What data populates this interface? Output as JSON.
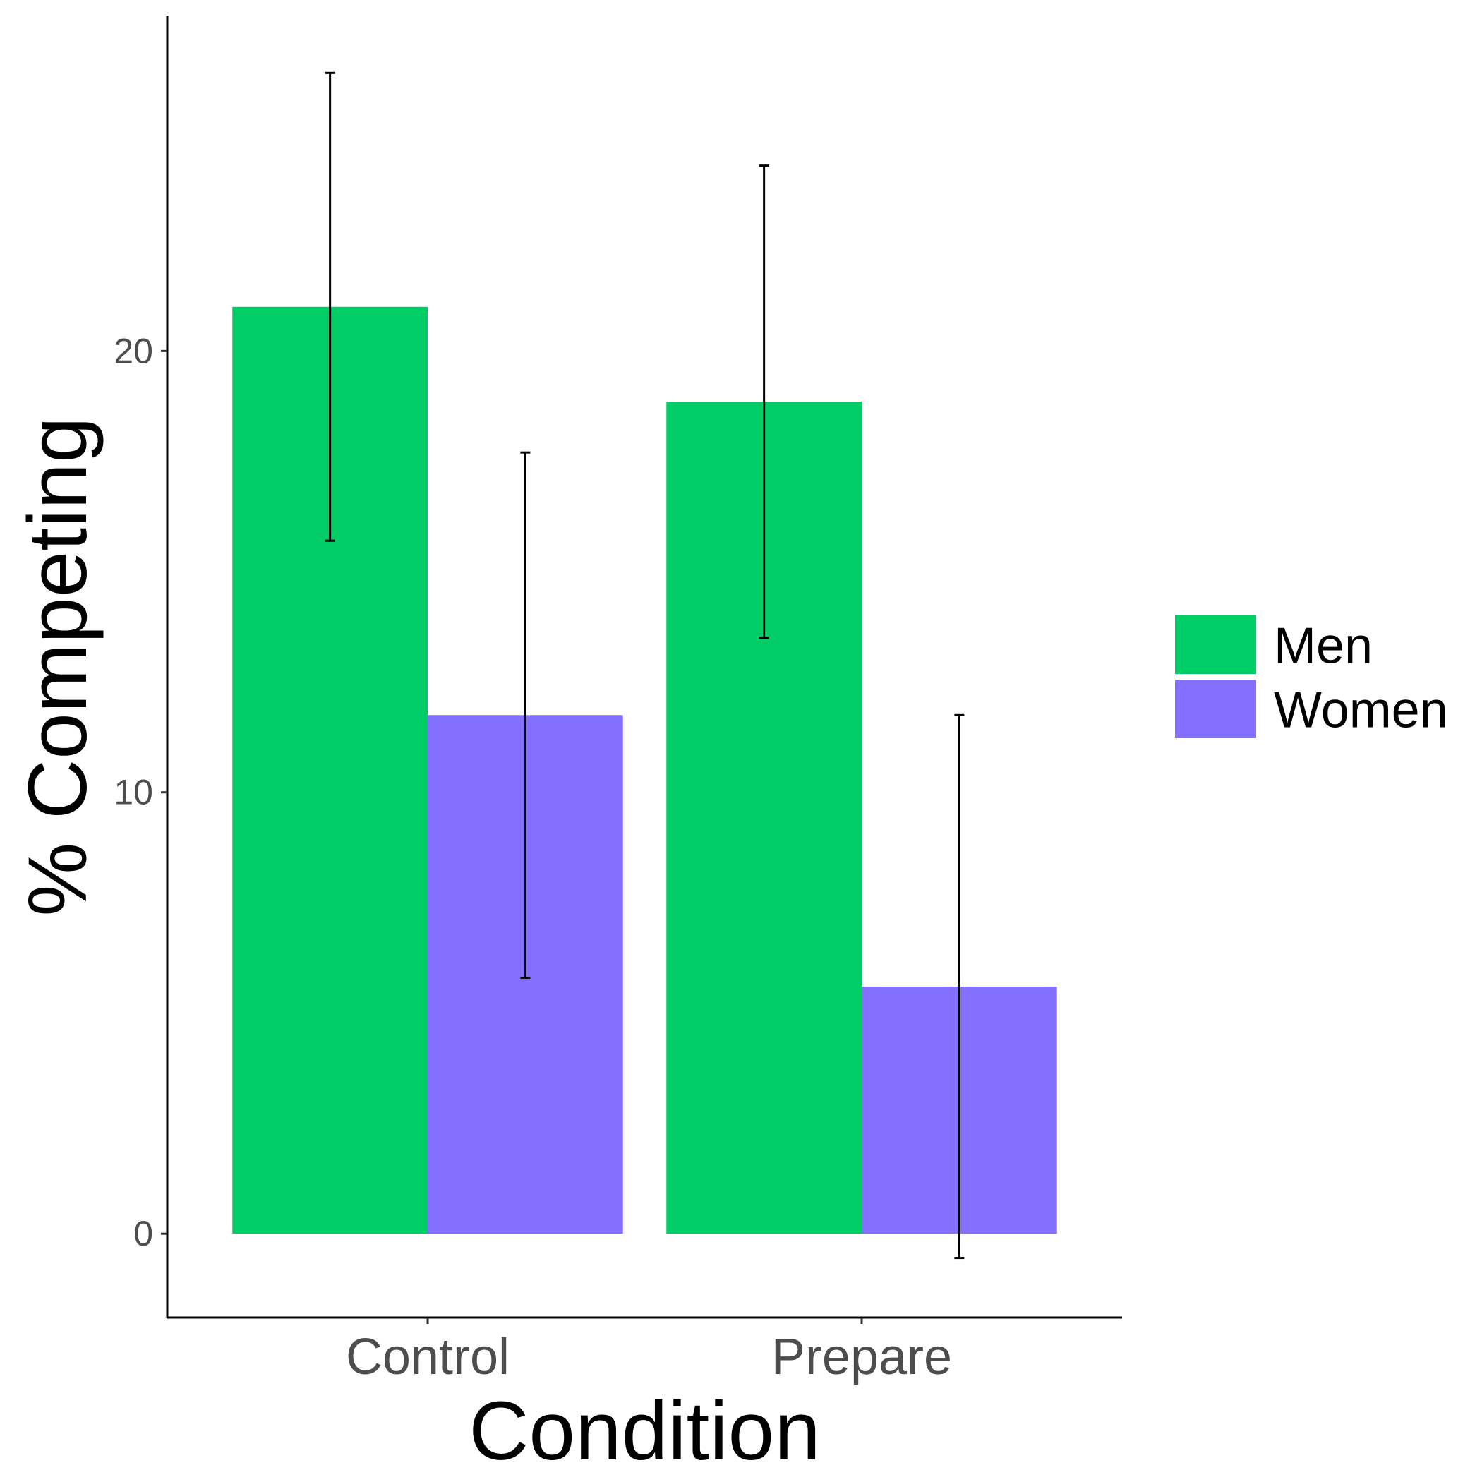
{
  "chart_data": {
    "type": "bar",
    "title": "",
    "xlabel": "Condition",
    "ylabel": "% Competing",
    "categories": [
      "Control",
      "Prepare"
    ],
    "yticks": [
      0,
      10,
      20
    ],
    "ylim": [
      -1.9,
      27.6
    ],
    "series": [
      {
        "name": "Men",
        "color": "#00CD66",
        "values": [
          21.0,
          18.85
        ],
        "error_low": [
          15.7,
          13.5
        ],
        "error_high": [
          26.3,
          24.2
        ]
      },
      {
        "name": "Women",
        "color": "#8470FF",
        "values": [
          11.75,
          5.6
        ],
        "error_low": [
          5.8,
          -0.55
        ],
        "error_high": [
          17.7,
          11.75
        ]
      }
    ],
    "legend": {
      "position": "right",
      "entries": [
        {
          "label": "Men",
          "color": "#00CD66"
        },
        {
          "label": "Women",
          "color": "#8470FF"
        }
      ]
    },
    "grid": false
  }
}
